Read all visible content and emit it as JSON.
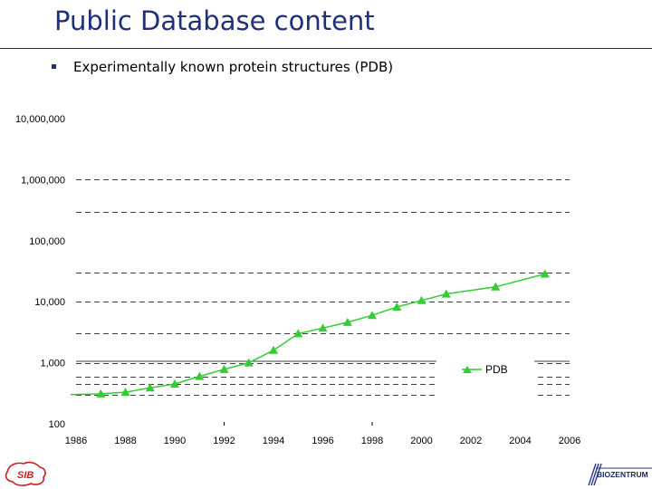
{
  "slide": {
    "title": "Public Database content",
    "bullet_text": "Experimentally known protein structures (PDB)"
  },
  "logos": {
    "left": "SIB",
    "right": "BIOZENTRUM"
  },
  "colors": {
    "title": "#1f2f7a",
    "series": "#33cc33",
    "gridline": "#000000"
  },
  "chart_data": {
    "type": "line",
    "title": "",
    "xlabel": "",
    "ylabel": "",
    "yscale": "log",
    "xlim": [
      1986,
      2006
    ],
    "ylim": [
      100,
      10000000
    ],
    "grid": "dashed horizontal lines",
    "legend_position": "lower-right",
    "x_ticks": [
      "1986",
      "1988",
      "1990",
      "1992",
      "1994",
      "1996",
      "1998",
      "2000",
      "2002",
      "2004",
      "2006"
    ],
    "y_ticks": [
      {
        "value": 10000000,
        "label": "10,000,000"
      },
      {
        "value": 1000000,
        "label": "1,000,000"
      },
      {
        "value": 100000,
        "label": "100,000"
      },
      {
        "value": 10000,
        "label": "10,000"
      },
      {
        "value": 1000,
        "label": "1,000"
      },
      {
        "value": 100,
        "label": "100"
      }
    ],
    "series": [
      {
        "name": "PDB",
        "marker": "triangle",
        "points": [
          {
            "x": 1987,
            "y": 310
          },
          {
            "x": 1988,
            "y": 330
          },
          {
            "x": 1989,
            "y": 390
          },
          {
            "x": 1990,
            "y": 450
          },
          {
            "x": 1991,
            "y": 600
          },
          {
            "x": 1992,
            "y": 780
          },
          {
            "x": 1993,
            "y": 1000
          },
          {
            "x": 1994,
            "y": 1600
          },
          {
            "x": 1995,
            "y": 3000
          },
          {
            "x": 1996,
            "y": 3700
          },
          {
            "x": 1997,
            "y": 4600
          },
          {
            "x": 1998,
            "y": 6000
          },
          {
            "x": 1999,
            "y": 8200
          },
          {
            "x": 2000,
            "y": 10500
          },
          {
            "x": 2001,
            "y": 13400
          },
          {
            "x": 2003,
            "y": 17500
          },
          {
            "x": 2005,
            "y": 28500
          }
        ]
      }
    ]
  }
}
